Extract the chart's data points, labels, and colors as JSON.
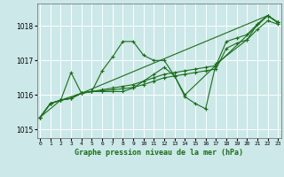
{
  "title": "Graphe pression niveau de la mer (hPa)",
  "background_color": "#cce8e8",
  "grid_color": "#aad8d8",
  "line_color": "#1a6e1a",
  "xlim": [
    -0.3,
    23.3
  ],
  "ylim": [
    1014.75,
    1018.65
  ],
  "yticks": [
    1015,
    1016,
    1017,
    1018
  ],
  "xticks": [
    0,
    1,
    2,
    3,
    4,
    5,
    6,
    7,
    8,
    9,
    10,
    11,
    12,
    13,
    14,
    15,
    16,
    17,
    18,
    19,
    20,
    21,
    22,
    23
  ],
  "series": [
    {
      "x": [
        0,
        1,
        2,
        3,
        4,
        5,
        6,
        7,
        8,
        9,
        10,
        11,
        12,
        13,
        14,
        22,
        23
      ],
      "y": [
        1015.35,
        1015.75,
        1015.85,
        1016.65,
        1016.05,
        1016.1,
        1016.7,
        1017.1,
        1017.55,
        1017.55,
        1017.15,
        1017.0,
        1017.0,
        1016.55,
        1016.0,
        1018.3,
        1018.1
      ]
    },
    {
      "x": [
        0,
        1,
        2,
        3,
        4,
        5,
        6,
        7,
        8,
        9,
        10,
        11,
        12,
        13,
        14,
        15,
        16,
        17,
        20,
        21,
        22,
        23
      ],
      "y": [
        1015.35,
        1015.75,
        1015.85,
        1015.9,
        1016.05,
        1016.1,
        1016.1,
        1016.1,
        1016.1,
        1016.2,
        1016.4,
        1016.6,
        1016.8,
        1016.55,
        1015.95,
        1015.75,
        1015.6,
        1016.9,
        1017.6,
        1018.05,
        1018.3,
        1018.1
      ]
    },
    {
      "x": [
        0,
        2,
        4,
        22,
        23
      ],
      "y": [
        1015.35,
        1015.85,
        1016.05,
        1018.3,
        1018.1
      ]
    },
    {
      "x": [
        0,
        1,
        2,
        3,
        4,
        5,
        6,
        7,
        8,
        9,
        10,
        11,
        12,
        13,
        14,
        15,
        16,
        17,
        18,
        19,
        20,
        21,
        22,
        23
      ],
      "y": [
        1015.35,
        1015.75,
        1015.85,
        1015.9,
        1016.05,
        1016.1,
        1016.15,
        1016.2,
        1016.25,
        1016.3,
        1016.4,
        1016.5,
        1016.6,
        1016.65,
        1016.7,
        1016.75,
        1016.8,
        1016.85,
        1017.55,
        1017.65,
        1017.75,
        1018.05,
        1018.3,
        1018.1
      ]
    },
    {
      "x": [
        0,
        1,
        2,
        3,
        4,
        5,
        6,
        7,
        8,
        9,
        10,
        11,
        12,
        13,
        14,
        15,
        16,
        17,
        18,
        19,
        20,
        21,
        22,
        23
      ],
      "y": [
        1015.35,
        1015.75,
        1015.85,
        1015.9,
        1016.05,
        1016.1,
        1016.12,
        1016.15,
        1016.18,
        1016.22,
        1016.3,
        1016.4,
        1016.5,
        1016.55,
        1016.6,
        1016.65,
        1016.7,
        1016.75,
        1017.35,
        1017.5,
        1017.6,
        1017.9,
        1018.15,
        1018.05
      ]
    }
  ]
}
